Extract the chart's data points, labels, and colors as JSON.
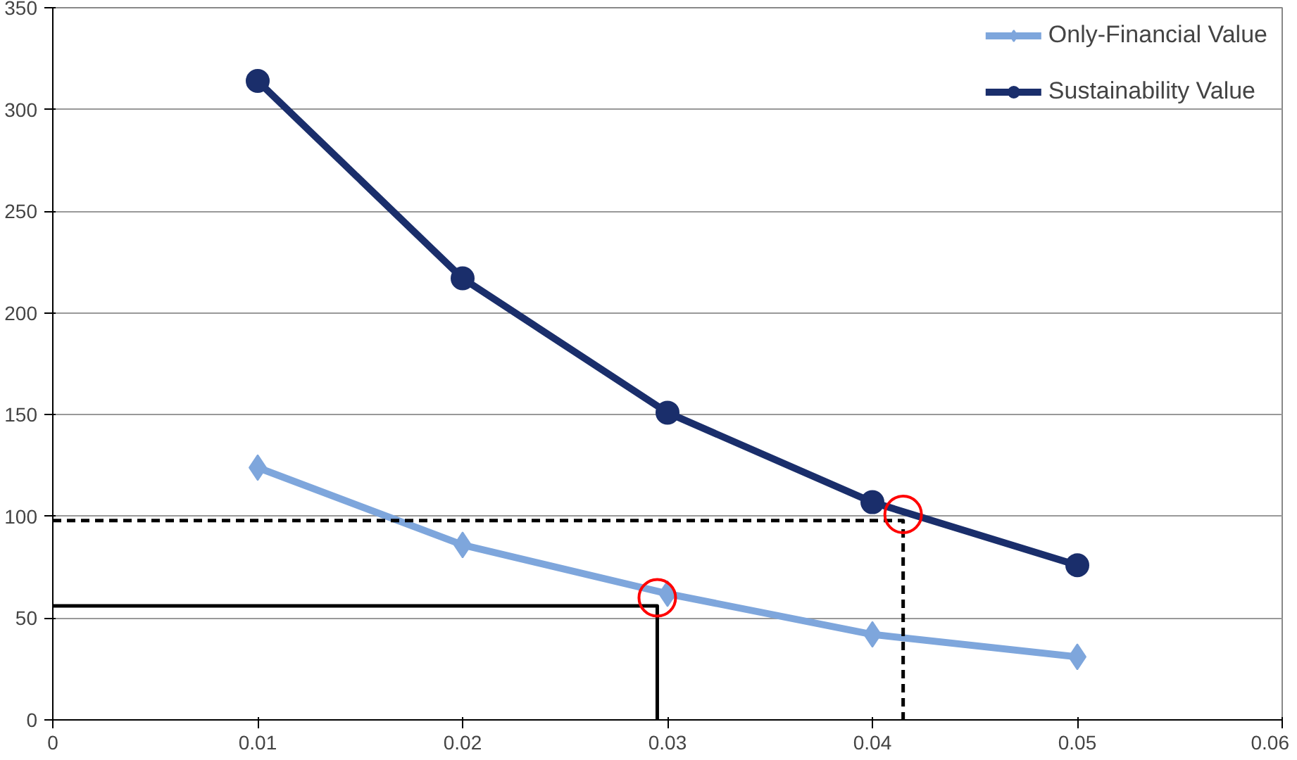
{
  "chart_data": {
    "type": "line",
    "xlim": [
      0,
      0.06
    ],
    "xticks": [
      {
        "value": 0,
        "label": "0"
      },
      0.01,
      0.02,
      0.03,
      0.04,
      0.05,
      0.06
    ],
    "ylim": [
      0,
      350
    ],
    "yticks": [
      0,
      50,
      100,
      150,
      200,
      250,
      300,
      350
    ],
    "grid": "y",
    "legend": "top right",
    "x": [
      0.01,
      0.02,
      0.03,
      0.04,
      0.05
    ],
    "series": [
      {
        "name": "Only-Financial Value",
        "color": "#7ea6dc",
        "marker": "diamond",
        "values": [
          124,
          86,
          62,
          42,
          31
        ]
      },
      {
        "name": "Sustainability Value",
        "color": "#1a2e6b",
        "marker": "circle",
        "values": [
          314,
          217,
          151,
          107,
          76
        ]
      },
      {
        "type": "line",
        "color": "#000000",
        "marker": "none",
        "line_style": "dashed",
        "x": [
          0,
          0.0415,
          0.0415
        ],
        "values": [
          98,
          98,
          0
        ]
      },
      {
        "type": "line",
        "color": "#000000",
        "marker": "none",
        "line_style": "solid",
        "x": [
          0,
          0.0295,
          0.0295
        ],
        "values": [
          56,
          56,
          0
        ]
      },
      {
        "type": "scatter",
        "color": "#ff0000",
        "marker": "circle",
        "x": [
          0.0295,
          0.0415
        ],
        "values": [
          60,
          101
        ]
      }
    ]
  }
}
